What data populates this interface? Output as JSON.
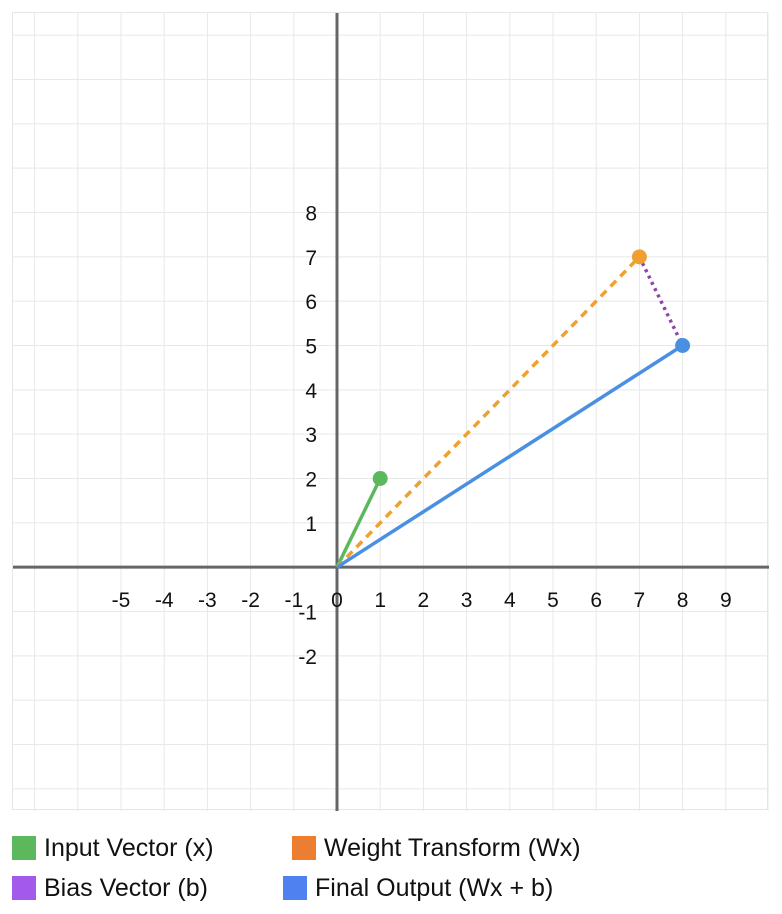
{
  "chart_data": {
    "type": "line",
    "xlim": [
      -7.5,
      10
    ],
    "ylim": [
      -5.5,
      12.5
    ],
    "x_ticks": [
      -5,
      -4,
      -3,
      -2,
      -1,
      0,
      1,
      2,
      3,
      4,
      5,
      6,
      7,
      8,
      9
    ],
    "y_ticks": [
      -2,
      -1,
      1,
      2,
      3,
      4,
      5,
      6,
      7,
      8
    ],
    "grid": true,
    "legend_position": "bottom",
    "series": [
      {
        "name": "Input Vector (x)",
        "color": "#5cb85c",
        "style": "solid",
        "points": [
          [
            0,
            0
          ],
          [
            1,
            2
          ]
        ],
        "end_marker": true
      },
      {
        "name": "Weight Transform (Wx)",
        "color": "#f0a030",
        "style": "dashed",
        "points": [
          [
            0,
            0
          ],
          [
            7,
            7
          ]
        ],
        "end_marker": true
      },
      {
        "name": "Bias Vector (b)",
        "color": "#8e44ad",
        "style": "dotted",
        "points": [
          [
            7,
            7
          ],
          [
            8,
            5
          ]
        ],
        "end_marker": false
      },
      {
        "name": "Final Output (Wx + b)",
        "color": "#4a90e2",
        "style": "solid",
        "points": [
          [
            0,
            0
          ],
          [
            8,
            5
          ]
        ],
        "end_marker": true
      }
    ]
  },
  "legend": [
    {
      "label": "Input Vector (x)",
      "color": "#5cb85c"
    },
    {
      "label": "Weight Transform (Wx)",
      "color": "#ed7d31"
    },
    {
      "label": "Bias Vector (b)",
      "color": "#a259ec"
    },
    {
      "label": "Final Output (Wx + b)",
      "color": "#4f81f0"
    }
  ]
}
